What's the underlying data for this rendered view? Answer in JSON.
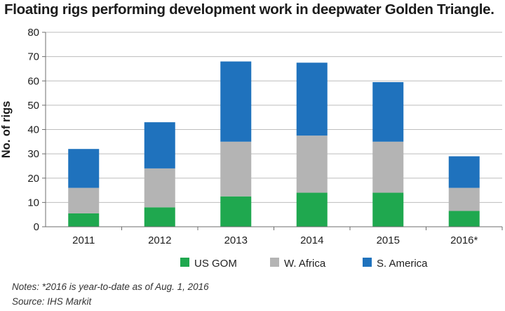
{
  "title": "Floating rigs performing development work in deepwater Golden Triangle.",
  "notes": [
    "Notes: *2016 is year-to-date as of Aug. 1, 2016",
    "Source: IHS Markit"
  ],
  "colors": {
    "US GOM": "#1fa84f",
    "W. Africa": "#b4b4b4",
    "S. America": "#1f72bd",
    "axis": "#6e6e6e",
    "grid": "#bdbdbd"
  },
  "chart_data": {
    "type": "bar",
    "stacked": true,
    "categories": [
      "2011",
      "2012",
      "2013",
      "2014",
      "2015",
      "2016*"
    ],
    "series": [
      {
        "name": "US GOM",
        "values": [
          5.5,
          8,
          12.5,
          14,
          14,
          6.5
        ]
      },
      {
        "name": "W. Africa",
        "values": [
          10.5,
          16,
          22.5,
          23.5,
          21,
          9.5
        ]
      },
      {
        "name": "S. America",
        "values": [
          16,
          19,
          33,
          30,
          24.5,
          13
        ]
      }
    ],
    "ylabel": "No. of rigs",
    "xlabel": "",
    "ylim": [
      0,
      80
    ],
    "yticks": [
      0,
      10,
      20,
      30,
      40,
      50,
      60,
      70,
      80
    ],
    "grid": true,
    "legend": "bottom"
  }
}
